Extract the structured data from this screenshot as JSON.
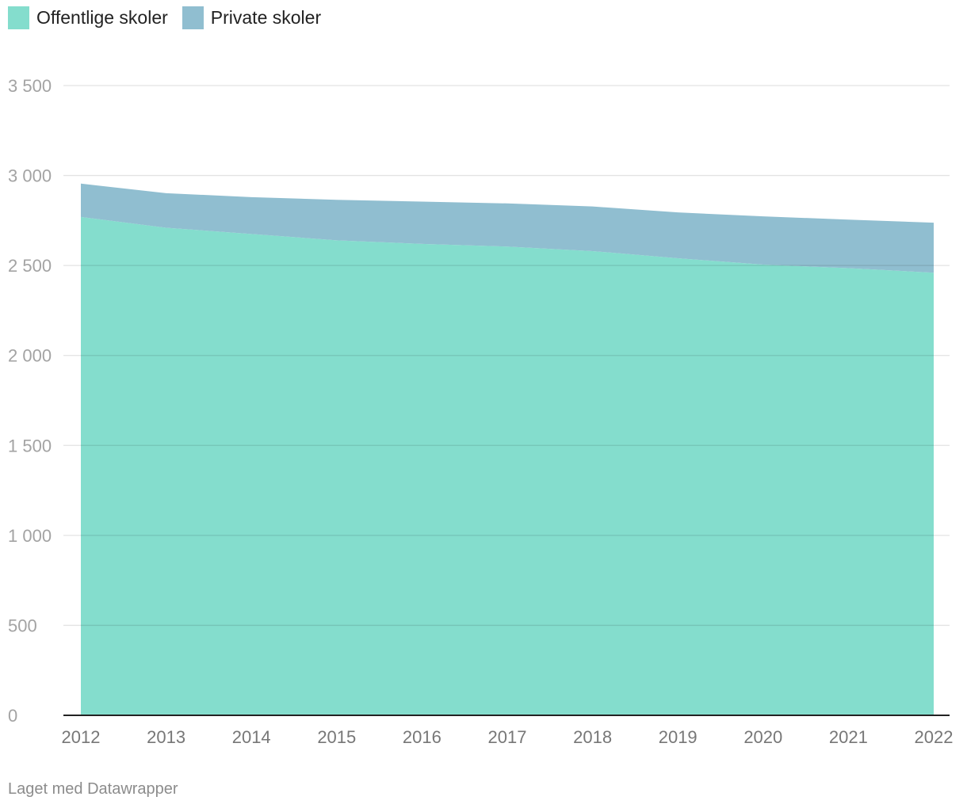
{
  "legend": [
    {
      "label": "Offentlige skoler",
      "color": "#84ddcd"
    },
    {
      "label": "Private skoler",
      "color": "#90bed0"
    }
  ],
  "credit": "Laget med Datawrapper",
  "y_tick_labels": [
    "0",
    "500",
    "1 000",
    "1 500",
    "2 000",
    "2 500",
    "3 000",
    "3 500"
  ],
  "chart_data": {
    "type": "area",
    "stacked": true,
    "x": [
      2012,
      2013,
      2014,
      2015,
      2016,
      2017,
      2018,
      2019,
      2020,
      2021,
      2022
    ],
    "series": [
      {
        "name": "Offentlige skoler",
        "color": "#84ddcd",
        "values": [
          2770,
          2710,
          2675,
          2640,
          2620,
          2605,
          2580,
          2540,
          2505,
          2485,
          2460
        ]
      },
      {
        "name": "Private skoler",
        "color": "#90bed0",
        "values": [
          185,
          192,
          205,
          225,
          235,
          240,
          248,
          255,
          268,
          270,
          278
        ]
      }
    ],
    "ylim": [
      0,
      3500
    ],
    "yticks": [
      0,
      500,
      1000,
      1500,
      2000,
      2500,
      3000,
      3500
    ],
    "grid": true,
    "legend_position": "top-left",
    "xlabel": "",
    "ylabel": ""
  }
}
